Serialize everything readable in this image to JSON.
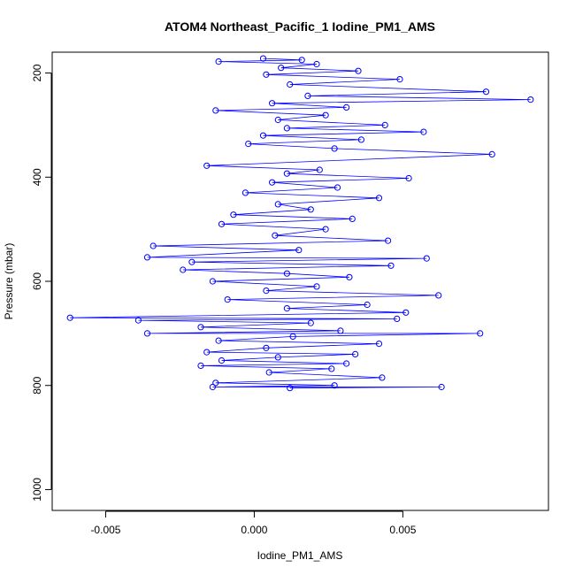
{
  "chart_data": {
    "type": "scatter",
    "title": "ATOM4 Northeast_Pacific_1 Iodine_PM1_AMS",
    "xlabel": "Iodine_PM1_AMS",
    "ylabel": "Pressure (mbar)",
    "xlim": [
      -0.0068,
      0.0099
    ],
    "ylim": [
      1040,
      160
    ],
    "y_inverted": true,
    "x_ticks": [
      -0.005,
      0.0,
      0.005
    ],
    "x_tick_labels": [
      "-0.005",
      "0.000",
      "0.005"
    ],
    "y_ticks": [
      200,
      400,
      600,
      800,
      1000
    ],
    "y_tick_labels": [
      "200",
      "400",
      "600",
      "800",
      "1000"
    ],
    "grid": false,
    "legend": "none",
    "series": [
      {
        "color": "#0000ff",
        "marker": "open-circle",
        "line": true,
        "points": [
          [
            0.0003,
            172
          ],
          [
            0.0016,
            175
          ],
          [
            -0.0012,
            178
          ],
          [
            0.0021,
            183
          ],
          [
            0.0009,
            190
          ],
          [
            0.0035,
            196
          ],
          [
            0.0004,
            203
          ],
          [
            0.0049,
            212
          ],
          [
            0.0012,
            222
          ],
          [
            0.0078,
            236
          ],
          [
            0.0018,
            244
          ],
          [
            0.0093,
            251
          ],
          [
            0.0006,
            258
          ],
          [
            0.0031,
            266
          ],
          [
            -0.0013,
            272
          ],
          [
            0.0024,
            281
          ],
          [
            0.0008,
            290
          ],
          [
            0.0044,
            300
          ],
          [
            0.0011,
            306
          ],
          [
            0.0057,
            313
          ],
          [
            0.0003,
            320
          ],
          [
            0.0036,
            328
          ],
          [
            -0.0002,
            336
          ],
          [
            0.0027,
            345
          ],
          [
            0.008,
            356
          ],
          [
            -0.0016,
            378
          ],
          [
            0.0022,
            386
          ],
          [
            0.0011,
            393
          ],
          [
            0.0052,
            402
          ],
          [
            0.0006,
            410
          ],
          [
            0.0028,
            420
          ],
          [
            -0.0003,
            430
          ],
          [
            0.0042,
            440
          ],
          [
            0.0008,
            452
          ],
          [
            0.0019,
            462
          ],
          [
            -0.0007,
            472
          ],
          [
            0.0033,
            480
          ],
          [
            -0.0011,
            490
          ],
          [
            0.0024,
            500
          ],
          [
            0.0007,
            512
          ],
          [
            0.0045,
            522
          ],
          [
            -0.0034,
            532
          ],
          [
            0.0015,
            540
          ],
          [
            -0.0036,
            554
          ],
          [
            0.0058,
            556
          ],
          [
            -0.0021,
            563
          ],
          [
            0.0046,
            570
          ],
          [
            -0.0024,
            578
          ],
          [
            0.0011,
            585
          ],
          [
            0.0032,
            592
          ],
          [
            -0.0014,
            600
          ],
          [
            0.0021,
            610
          ],
          [
            0.0004,
            618
          ],
          [
            0.0062,
            627
          ],
          [
            -0.0009,
            635
          ],
          [
            0.0038,
            645
          ],
          [
            0.0011,
            652
          ],
          [
            0.0051,
            660
          ],
          [
            -0.0062,
            670
          ],
          [
            0.0048,
            672
          ],
          [
            -0.0039,
            675
          ],
          [
            0.0019,
            680
          ],
          [
            -0.0018,
            688
          ],
          [
            0.0029,
            695
          ],
          [
            -0.0036,
            700
          ],
          [
            0.0076,
            700
          ],
          [
            0.0013,
            706
          ],
          [
            -0.0012,
            714
          ],
          [
            0.0042,
            720
          ],
          [
            0.0004,
            728
          ],
          [
            -0.0016,
            736
          ],
          [
            0.0034,
            740
          ],
          [
            0.0008,
            746
          ],
          [
            -0.0011,
            752
          ],
          [
            0.0031,
            758
          ],
          [
            -0.0018,
            762
          ],
          [
            0.0026,
            768
          ],
          [
            0.0005,
            775
          ],
          [
            0.0043,
            785
          ],
          [
            -0.0013,
            795
          ],
          [
            0.0027,
            800
          ],
          [
            -0.0014,
            803
          ],
          [
            0.0063,
            803
          ],
          [
            0.0012,
            805
          ]
        ]
      }
    ]
  }
}
